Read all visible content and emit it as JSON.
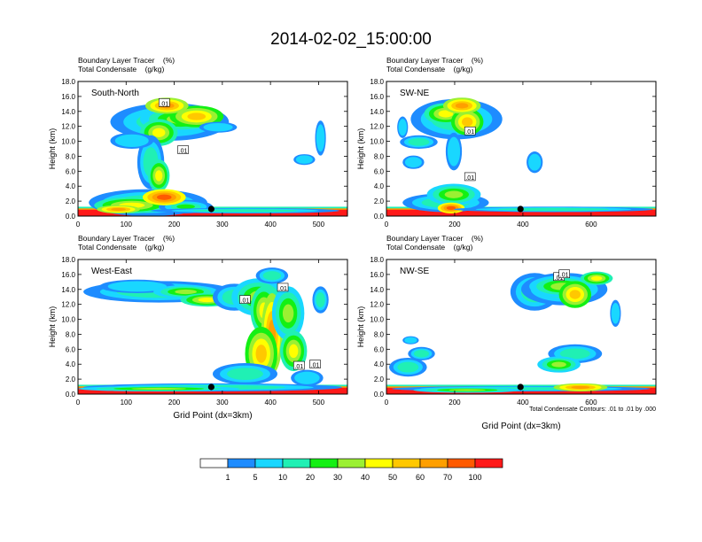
{
  "title": "2014-02-02_15:00:00",
  "chart_data": {
    "type": "heatmap",
    "panels": [
      {
        "title": "South-North",
        "subtitle_lines": [
          "Boundary Layer Tracer    (%)",
          "Total Condensate    (g/kg)"
        ],
        "xlabel": "",
        "ylabel": "Height (km)",
        "xlim": [
          0,
          560
        ],
        "ylim": [
          0,
          18
        ],
        "xticks": [
          "0",
          "100",
          "200",
          "300",
          "400",
          "500"
        ],
        "yticks": [
          "0.0",
          "2.0",
          "4.0",
          "6.0",
          "8.0",
          "10.0",
          "12.0",
          "14.0",
          "16.0",
          "18.0"
        ],
        "marker_x": 277,
        "contour_labels": [
          ".01",
          ".01"
        ]
      },
      {
        "title": "SW-NE",
        "subtitle_lines": [
          "Boundary Layer Tracer    (%)",
          "Total Condensate    (g/kg)"
        ],
        "xlabel": "",
        "ylabel": "Height (km)",
        "xlim": [
          0,
          790
        ],
        "ylim": [
          0,
          18
        ],
        "xticks": [
          "0",
          "200",
          "400",
          "600"
        ],
        "yticks": [
          "0.0",
          "2.0",
          "4.0",
          "6.0",
          "8.0",
          "10.0",
          "12.0",
          "14.0",
          "16.0",
          "18.0"
        ],
        "marker_x": 393,
        "contour_labels": [
          ".01",
          ".01"
        ]
      },
      {
        "title": "West-East",
        "subtitle_lines": [
          "Boundary Layer Tracer    (%)",
          "Total Condensate    (g/kg)"
        ],
        "xlabel": "Grid Point (dx=3km)",
        "ylabel": "Height (km)",
        "xlim": [
          0,
          560
        ],
        "ylim": [
          0,
          18
        ],
        "xticks": [
          "0",
          "100",
          "200",
          "300",
          "400",
          "500"
        ],
        "yticks": [
          "0.0",
          "2.0",
          "4.0",
          "6.0",
          "8.0",
          "10.0",
          "12.0",
          "14.0",
          "16.0",
          "18.0"
        ],
        "marker_x": 277,
        "contour_labels": [
          ".01",
          ".01",
          ".01",
          ".01"
        ]
      },
      {
        "title": "NW-SE",
        "subtitle_lines": [
          "Boundary Layer Tracer    (%)",
          "Total Condensate    (g/kg)"
        ],
        "xlabel": "Grid Point (dx=3km)",
        "ylabel": "Height (km)",
        "xlim": [
          0,
          790
        ],
        "ylim": [
          0,
          18
        ],
        "xticks": [
          "0",
          "200",
          "400",
          "600"
        ],
        "yticks": [
          "0.0",
          "2.0",
          "4.0",
          "6.0",
          "8.0",
          "10.0",
          "12.0",
          "14.0",
          "16.0",
          "18.0"
        ],
        "marker_x": 393,
        "contour_labels": [
          ".01",
          ".01"
        ],
        "note": "Total Condensate Contours: .01 to .01 by .000"
      }
    ],
    "colorbar": {
      "colors": [
        "#ffffff",
        "#1e8cff",
        "#19d7ff",
        "#20f0b4",
        "#14f014",
        "#9bf032",
        "#ffff00",
        "#ffc800",
        "#ff9f00",
        "#ff5a00",
        "#ff1919"
      ],
      "labels": [
        "1",
        "5",
        "10",
        "20",
        "30",
        "40",
        "50",
        "60",
        "70",
        "100"
      ]
    }
  }
}
